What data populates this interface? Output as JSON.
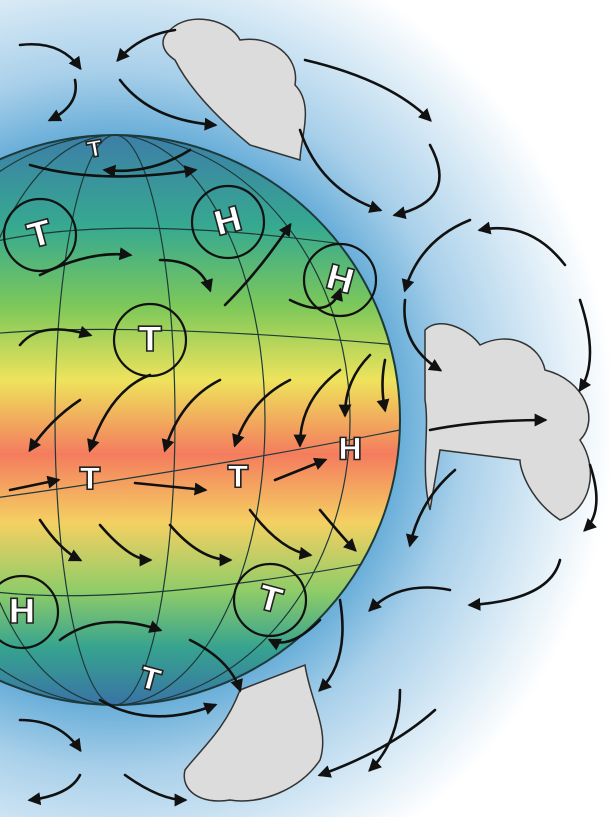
{
  "nodes": [
    {
      "label": "T"
    },
    {
      "label": "T"
    },
    {
      "label": "H"
    },
    {
      "label": "H"
    },
    {
      "label": "T"
    },
    {
      "label": "T"
    },
    {
      "label": "T"
    },
    {
      "label": "H"
    },
    {
      "label": "H"
    },
    {
      "label": "T"
    },
    {
      "label": "T"
    }
  ]
}
